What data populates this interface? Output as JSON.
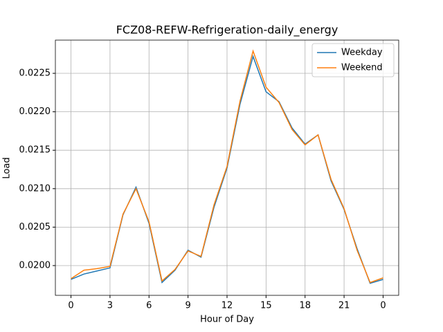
{
  "chart_data": {
    "type": "line",
    "title": "FCZ08-REFW-Refrigeration-daily_energy",
    "xlabel": "Hour of Day",
    "ylabel": "Load",
    "x": [
      0,
      1,
      2,
      3,
      4,
      5,
      6,
      7,
      8,
      9,
      10,
      11,
      12,
      13,
      14,
      15,
      16,
      17,
      18,
      19,
      20,
      21,
      22,
      23,
      24
    ],
    "series": [
      {
        "name": "Weekday",
        "color": "#1f77b4",
        "values": [
          0.01982,
          0.01989,
          0.01993,
          0.01997,
          0.02066,
          0.02102,
          0.02055,
          0.01978,
          0.01994,
          0.0202,
          0.02011,
          0.02076,
          0.02127,
          0.0221,
          0.02272,
          0.02226,
          0.02213,
          0.02179,
          0.02158,
          0.0217,
          0.0211,
          0.02073,
          0.02022,
          0.01977,
          0.01982
        ]
      },
      {
        "name": "Weekend",
        "color": "#ff7f0e",
        "values": [
          0.01983,
          0.01994,
          0.01996,
          0.01999,
          0.02067,
          0.021,
          0.02057,
          0.0198,
          0.01995,
          0.02019,
          0.02012,
          0.02079,
          0.02129,
          0.02214,
          0.02279,
          0.02232,
          0.02212,
          0.02177,
          0.02157,
          0.0217,
          0.02112,
          0.02074,
          0.0202,
          0.01978,
          0.01984
        ]
      }
    ],
    "xlim": [
      -1.2,
      25.2
    ],
    "xticks": [
      0,
      3,
      6,
      9,
      12,
      15,
      18,
      21,
      {
        "value": 24,
        "label": "0"
      }
    ],
    "ylim": [
      0.019613,
      0.022932
    ],
    "yticks": [
      {
        "value": 0.02,
        "label": "0.0200"
      },
      {
        "value": 0.0205,
        "label": "0.0205"
      },
      {
        "value": 0.021,
        "label": "0.0210"
      },
      {
        "value": 0.0215,
        "label": "0.0215"
      },
      {
        "value": 0.022,
        "label": "0.0220"
      },
      {
        "value": 0.0225,
        "label": "0.0225"
      }
    ],
    "grid": true,
    "legend": "upper right"
  }
}
